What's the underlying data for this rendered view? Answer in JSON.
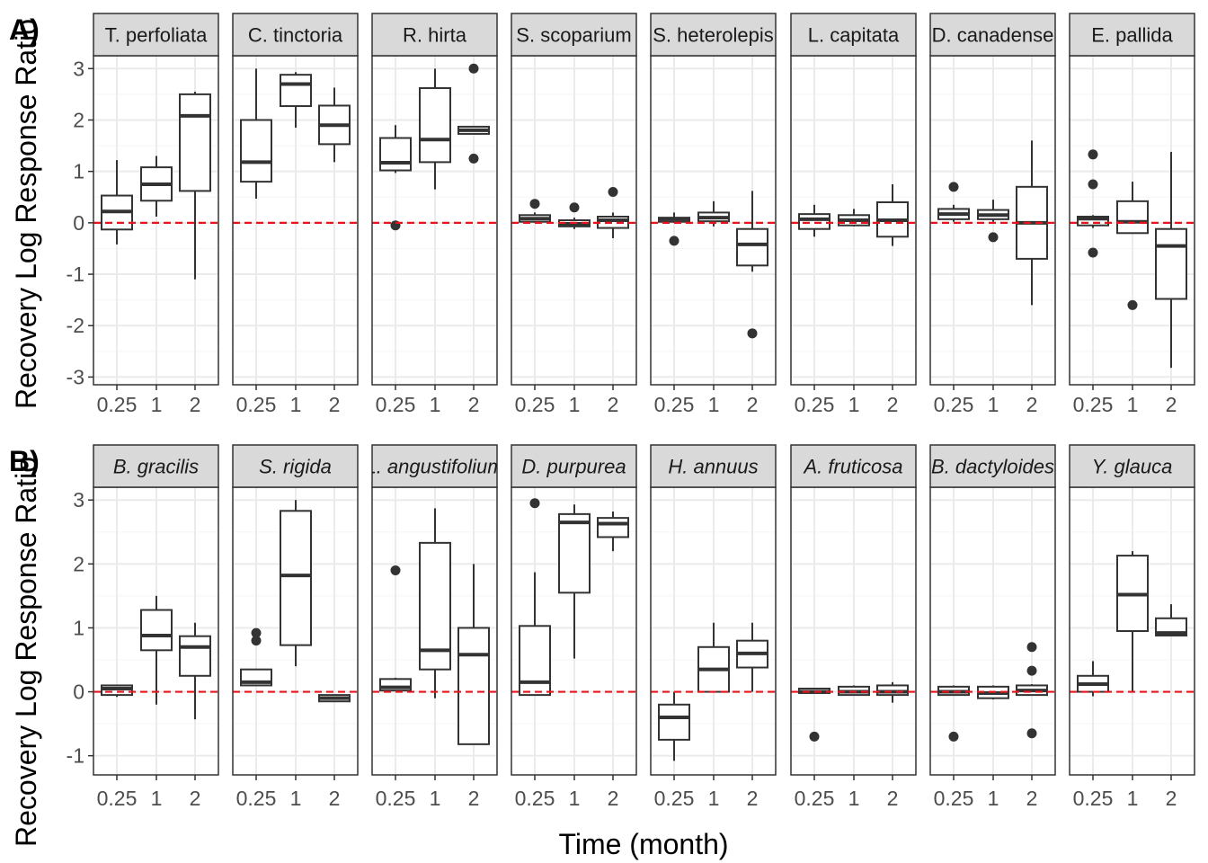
{
  "chart_data": [
    {
      "type": "box",
      "panel_tag": "A)",
      "ylabel": "Recovery Log Response Ratio",
      "xlabel": "",
      "ylim": [
        -3.15,
        3.25
      ],
      "yticks": [
        -3,
        -2,
        -1,
        0,
        1,
        2,
        3
      ],
      "x_categories": [
        "0.25",
        "1",
        "2"
      ],
      "reference_line": 0,
      "italic_strips": false,
      "facets": [
        {
          "name": "T. perfoliata",
          "boxes": [
            {
              "x": "0.25",
              "lw": -0.42,
              "q1": -0.13,
              "med": 0.22,
              "q3": 0.53,
              "uw": 1.22,
              "out": []
            },
            {
              "x": "1",
              "lw": 0.12,
              "q1": 0.43,
              "med": 0.75,
              "q3": 1.08,
              "uw": 1.3,
              "out": []
            },
            {
              "x": "2",
              "lw": -1.1,
              "q1": 0.62,
              "med": 2.08,
              "q3": 2.5,
              "uw": 2.55,
              "out": []
            }
          ]
        },
        {
          "name": "C. tinctoria",
          "boxes": [
            {
              "x": "0.25",
              "lw": 0.47,
              "q1": 0.8,
              "med": 1.18,
              "q3": 2.0,
              "uw": 3.0,
              "out": []
            },
            {
              "x": "1",
              "lw": 1.85,
              "q1": 2.27,
              "med": 2.7,
              "q3": 2.88,
              "uw": 2.93,
              "out": []
            },
            {
              "x": "2",
              "lw": 1.18,
              "q1": 1.53,
              "med": 1.9,
              "q3": 2.28,
              "uw": 2.63,
              "out": []
            }
          ]
        },
        {
          "name": "R. hirta",
          "boxes": [
            {
              "x": "0.25",
              "lw": 0.97,
              "q1": 1.02,
              "med": 1.17,
              "q3": 1.65,
              "uw": 1.9,
              "out": [
                -0.05
              ]
            },
            {
              "x": "1",
              "lw": 0.65,
              "q1": 1.18,
              "med": 1.62,
              "q3": 2.62,
              "uw": 3.0,
              "out": []
            },
            {
              "x": "2",
              "lw": 1.73,
              "q1": 1.73,
              "med": 1.8,
              "q3": 1.87,
              "uw": 1.87,
              "out": [
                3.0,
                1.25
              ]
            }
          ]
        },
        {
          "name": "S. scoparium",
          "boxes": [
            {
              "x": "0.25",
              "lw": 0.0,
              "q1": 0.02,
              "med": 0.08,
              "q3": 0.15,
              "uw": 0.2,
              "out": [
                0.37
              ]
            },
            {
              "x": "1",
              "lw": -0.12,
              "q1": -0.07,
              "med": -0.02,
              "q3": 0.05,
              "uw": 0.1,
              "out": [
                0.3
              ]
            },
            {
              "x": "2",
              "lw": -0.3,
              "q1": -0.1,
              "med": 0.05,
              "q3": 0.12,
              "uw": 0.2,
              "out": [
                0.6
              ]
            }
          ]
        },
        {
          "name": "S. heterolepis",
          "boxes": [
            {
              "x": "0.25",
              "lw": 0.0,
              "q1": 0.02,
              "med": 0.07,
              "q3": 0.1,
              "uw": 0.2,
              "out": [
                -0.35
              ]
            },
            {
              "x": "1",
              "lw": -0.07,
              "q1": 0.03,
              "med": 0.1,
              "q3": 0.2,
              "uw": 0.42,
              "out": []
            },
            {
              "x": "2",
              "lw": -0.95,
              "q1": -0.83,
              "med": -0.42,
              "q3": -0.12,
              "uw": 0.62,
              "out": [
                -2.15
              ]
            }
          ]
        },
        {
          "name": "L. capitata",
          "boxes": [
            {
              "x": "0.25",
              "lw": -0.27,
              "q1": -0.12,
              "med": 0.07,
              "q3": 0.17,
              "uw": 0.35,
              "out": []
            },
            {
              "x": "1",
              "lw": -0.07,
              "q1": -0.05,
              "med": 0.05,
              "q3": 0.15,
              "uw": 0.27,
              "out": []
            },
            {
              "x": "2",
              "lw": -0.45,
              "q1": -0.27,
              "med": 0.05,
              "q3": 0.4,
              "uw": 0.75,
              "out": []
            }
          ]
        },
        {
          "name": "D. canadense",
          "boxes": [
            {
              "x": "0.25",
              "lw": 0.02,
              "q1": 0.07,
              "med": 0.17,
              "q3": 0.27,
              "uw": 0.35,
              "out": [
                0.7
              ]
            },
            {
              "x": "1",
              "lw": 0.02,
              "q1": 0.07,
              "med": 0.15,
              "q3": 0.25,
              "uw": 0.45,
              "out": [
                -0.28
              ]
            },
            {
              "x": "2",
              "lw": -1.6,
              "q1": -0.7,
              "med": 0.0,
              "q3": 0.7,
              "uw": 1.6,
              "out": []
            }
          ]
        },
        {
          "name": "E. pallida",
          "boxes": [
            {
              "x": "0.25",
              "lw": -0.1,
              "q1": -0.05,
              "med": 0.08,
              "q3": 0.12,
              "uw": 0.15,
              "out": [
                1.33,
                0.75,
                -0.58
              ]
            },
            {
              "x": "1",
              "lw": -0.2,
              "q1": -0.2,
              "med": 0.02,
              "q3": 0.42,
              "uw": 0.8,
              "out": [
                -1.6
              ]
            },
            {
              "x": "2",
              "lw": -2.82,
              "q1": -1.48,
              "med": -0.45,
              "q3": -0.12,
              "uw": 1.38,
              "out": []
            }
          ]
        }
      ]
    },
    {
      "type": "box",
      "panel_tag": "B)",
      "ylabel": "Recovery Log Response Ratio",
      "xlabel": "Time (month)",
      "ylim": [
        -1.3,
        3.2
      ],
      "yticks": [
        -1,
        0,
        1,
        2,
        3
      ],
      "x_categories": [
        "0.25",
        "1",
        "2"
      ],
      "reference_line": 0,
      "italic_strips": true,
      "facets": [
        {
          "name": "B. gracilis",
          "boxes": [
            {
              "x": "0.25",
              "lw": -0.08,
              "q1": -0.05,
              "med": 0.05,
              "q3": 0.1,
              "uw": 0.1,
              "out": []
            },
            {
              "x": "1",
              "lw": -0.2,
              "q1": 0.65,
              "med": 0.88,
              "q3": 1.28,
              "uw": 1.5,
              "out": []
            },
            {
              "x": "2",
              "lw": -0.43,
              "q1": 0.25,
              "med": 0.7,
              "q3": 0.87,
              "uw": 1.08,
              "out": []
            }
          ]
        },
        {
          "name": "S. rigida",
          "boxes": [
            {
              "x": "0.25",
              "lw": 0.1,
              "q1": 0.1,
              "med": 0.15,
              "q3": 0.35,
              "uw": 0.35,
              "out": [
                0.92,
                0.8
              ]
            },
            {
              "x": "1",
              "lw": 0.4,
              "q1": 0.73,
              "med": 1.82,
              "q3": 2.83,
              "uw": 3.0,
              "out": []
            },
            {
              "x": "2",
              "lw": -0.15,
              "q1": -0.15,
              "med": -0.1,
              "q3": -0.05,
              "uw": -0.05,
              "out": []
            }
          ]
        },
        {
          "name": "L. angustifolium",
          "boxes": [
            {
              "x": "0.25",
              "lw": 0.02,
              "q1": 0.02,
              "med": 0.07,
              "q3": 0.2,
              "uw": 0.22,
              "out": [
                1.9
              ]
            },
            {
              "x": "1",
              "lw": -0.1,
              "q1": 0.35,
              "med": 0.65,
              "q3": 2.33,
              "uw": 2.87,
              "out": []
            },
            {
              "x": "2",
              "lw": -0.82,
              "q1": -0.82,
              "med": 0.58,
              "q3": 1.0,
              "uw": 2.0,
              "out": []
            }
          ]
        },
        {
          "name": "D. purpurea",
          "boxes": [
            {
              "x": "0.25",
              "lw": -0.05,
              "q1": -0.05,
              "med": 0.15,
              "q3": 1.03,
              "uw": 1.87,
              "out": [
                2.95
              ]
            },
            {
              "x": "1",
              "lw": 0.52,
              "q1": 1.55,
              "med": 2.65,
              "q3": 2.78,
              "uw": 2.93,
              "out": []
            },
            {
              "x": "2",
              "lw": 2.2,
              "q1": 2.42,
              "med": 2.63,
              "q3": 2.72,
              "uw": 2.82,
              "out": []
            }
          ]
        },
        {
          "name": "H. annuus",
          "boxes": [
            {
              "x": "0.25",
              "lw": -1.08,
              "q1": -0.75,
              "med": -0.4,
              "q3": -0.2,
              "uw": 0.0,
              "out": []
            },
            {
              "x": "1",
              "lw": 0.0,
              "q1": 0.0,
              "med": 0.35,
              "q3": 0.7,
              "uw": 1.08,
              "out": []
            },
            {
              "x": "2",
              "lw": 0.0,
              "q1": 0.38,
              "med": 0.6,
              "q3": 0.8,
              "uw": 1.08,
              "out": []
            }
          ]
        },
        {
          "name": "A. fruticosa",
          "boxes": [
            {
              "x": "0.25",
              "lw": -0.02,
              "q1": -0.02,
              "med": 0.0,
              "q3": 0.05,
              "uw": 0.05,
              "out": [
                -0.7
              ]
            },
            {
              "x": "1",
              "lw": -0.05,
              "q1": -0.05,
              "med": 0.0,
              "q3": 0.08,
              "uw": 0.1,
              "out": []
            },
            {
              "x": "2",
              "lw": -0.17,
              "q1": -0.05,
              "med": 0.0,
              "q3": 0.1,
              "uw": 0.15,
              "out": []
            }
          ]
        },
        {
          "name": "B. dactyloides",
          "boxes": [
            {
              "x": "0.25",
              "lw": -0.05,
              "q1": -0.05,
              "med": 0.0,
              "q3": 0.08,
              "uw": 0.1,
              "out": [
                -0.7
              ]
            },
            {
              "x": "1",
              "lw": -0.12,
              "q1": -0.1,
              "med": -0.02,
              "q3": 0.08,
              "uw": 0.1,
              "out": []
            },
            {
              "x": "2",
              "lw": -0.05,
              "q1": -0.05,
              "med": 0.02,
              "q3": 0.1,
              "uw": 0.12,
              "out": [
                0.7,
                0.33,
                -0.65
              ]
            }
          ]
        },
        {
          "name": "Y. glauca",
          "boxes": [
            {
              "x": "0.25",
              "lw": -0.07,
              "q1": 0.0,
              "med": 0.12,
              "q3": 0.25,
              "uw": 0.48,
              "out": []
            },
            {
              "x": "1",
              "lw": 0.0,
              "q1": 0.95,
              "med": 1.52,
              "q3": 2.13,
              "uw": 2.2,
              "out": []
            },
            {
              "x": "2",
              "lw": 0.87,
              "q1": 0.88,
              "med": 0.92,
              "q3": 1.15,
              "uw": 1.37,
              "out": []
            }
          ]
        }
      ]
    }
  ],
  "colors": {
    "panel_border": "#333333",
    "strip_fill": "#d9d9d9",
    "grid_major": "#ebebeb",
    "grid_minor": "#f5f5f5",
    "box_line": "#333333",
    "reference_line": "#e8141c",
    "tick_label": "#4d4d4d"
  }
}
